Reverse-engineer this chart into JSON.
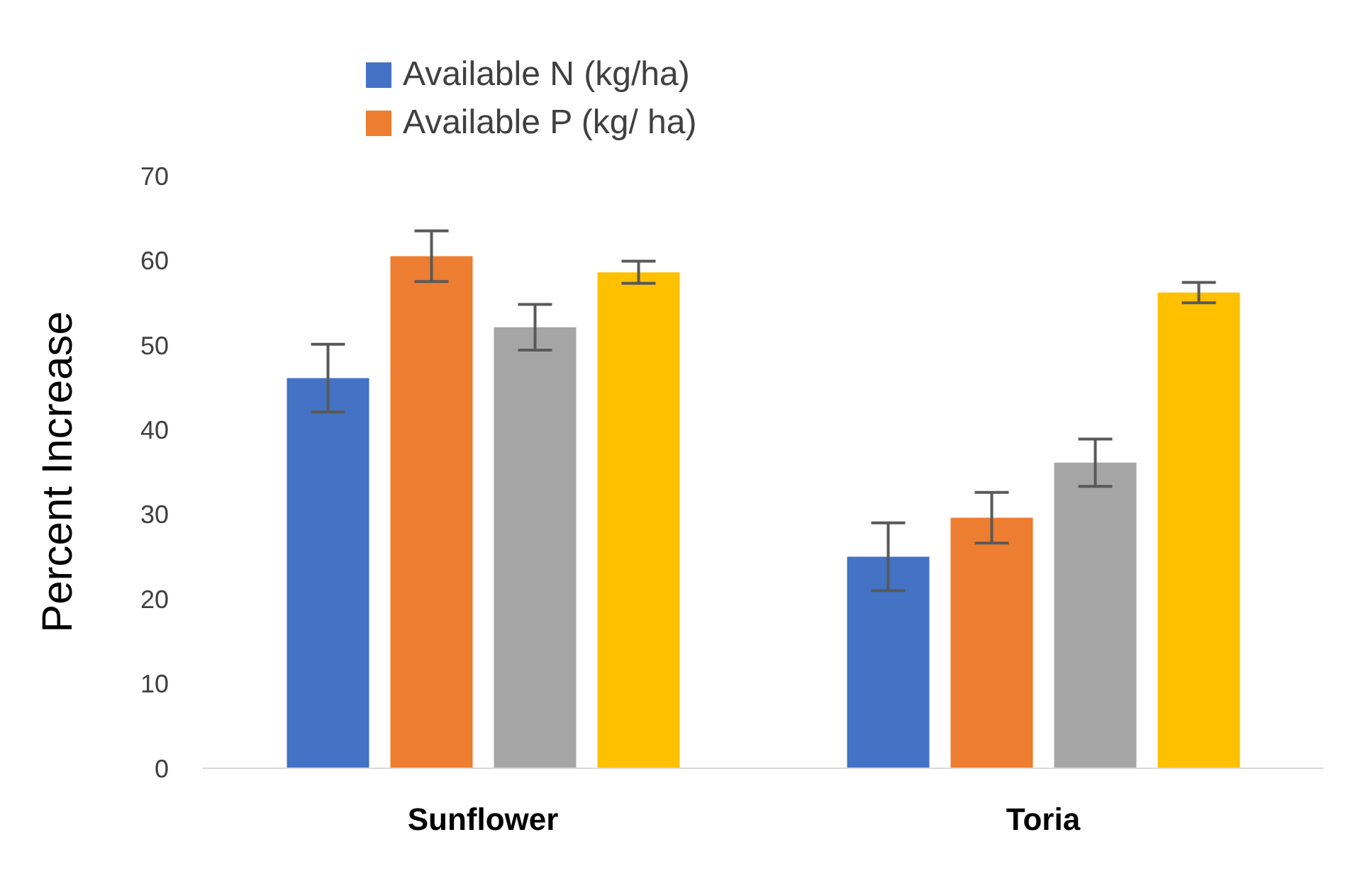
{
  "chart_data": {
    "type": "bar",
    "ylabel": "Percent Increase",
    "categories": [
      "Sunflower",
      "Toria"
    ],
    "series": [
      {
        "name": "Available N (kg/ha)",
        "color": "#4472c4",
        "values": [
          46.1,
          25.0
        ],
        "errors": [
          4,
          4
        ]
      },
      {
        "name": "Available P (kg/ ha)",
        "color": "#ed7d31",
        "values": [
          60.5,
          29.6
        ],
        "errors": [
          3,
          3
        ]
      },
      {
        "color": "#a5a5a5",
        "values": [
          52.1,
          36.1
        ],
        "errors": [
          2.7,
          2.8
        ]
      },
      {
        "color": "#ffc000",
        "values": [
          58.6,
          56.2
        ],
        "errors": [
          1.3,
          1.2
        ]
      }
    ],
    "ylim": [
      0,
      70
    ],
    "yticks": [
      0,
      10,
      20,
      30,
      40,
      50,
      60,
      70
    ],
    "grid": false,
    "legend": "top"
  }
}
